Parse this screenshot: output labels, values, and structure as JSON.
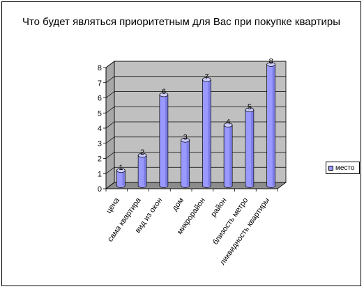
{
  "chart_data": {
    "type": "bar",
    "title": "Что будет являться приоритетным для Вас при покупке квартиры",
    "categories": [
      "цена",
      "сама квартира",
      "вид из окон",
      "дом",
      "микрорайон",
      "район",
      "близость метро",
      "ликвидность квартиры"
    ],
    "series": [
      {
        "name": "место",
        "values": [
          1,
          2,
          6,
          3,
          7,
          4,
          5,
          8
        ]
      }
    ],
    "ylim": [
      0,
      8
    ],
    "yticks": [
      "0",
      "1",
      "2",
      "3",
      "4",
      "5",
      "6",
      "7",
      "8"
    ],
    "data_labels": [
      "1",
      "2",
      "6",
      "3",
      "7",
      "4",
      "5",
      "8"
    ],
    "grid": true,
    "legend": "right",
    "colors": {
      "bar": "#9999ff",
      "bar_dark": "#5a5ac8",
      "bar_top": "#ccccff",
      "wall": "#c0c0c0",
      "floor": "#8c8c8c"
    }
  }
}
